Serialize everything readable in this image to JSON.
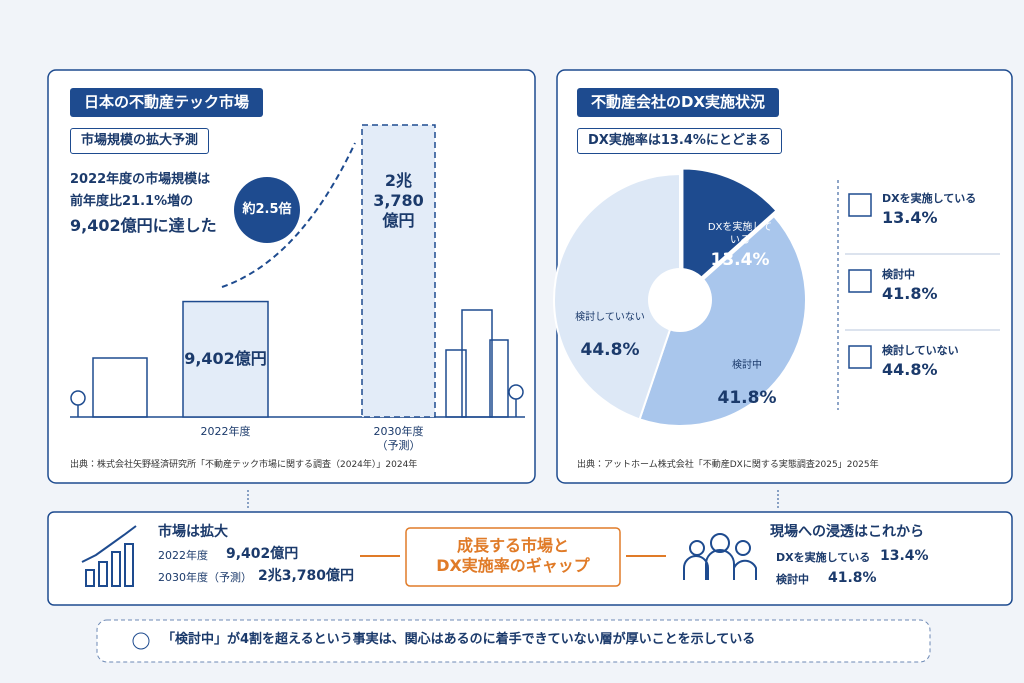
{
  "left_panel": {
    "title": "日本の不動産テック市場",
    "subtitle": "市場規模の拡大予測",
    "summary_lines": [
      "2022年度の市場規模は",
      "前年度比21.1%増の",
      "9,402億円に達した"
    ],
    "source": "出典：株式会社矢野経済研究所「不動産テック市場に関する調査（2024年）」2024年"
  },
  "right_panel": {
    "title": "不動産会社のDX実施状況",
    "subtitle": "DX実施率は13.4%にとどまる",
    "source": "出典：アットホーム株式会社「不動産DXに関する実態調査2025」2025年"
  },
  "chart_data": [
    {
      "type": "bar",
      "categories": [
        "2022年度",
        "2030年度\n（予測）"
      ],
      "values": [
        9402,
        23780
      ],
      "value_labels": [
        "9,402億円",
        "2兆3,780\n億円"
      ],
      "colors": [
        "#e3ecf8",
        "#e3ecf8"
      ],
      "annotation": "約2.5倍"
    },
    {
      "type": "pie",
      "categories": [
        "DXを実施している",
        "検討中",
        "検討していない"
      ],
      "values": [
        13.4,
        41.8,
        44.8
      ],
      "value_labels": [
        "13.4%",
        "41.8%",
        "44.8%"
      ],
      "colors": [
        "#1e4b8f",
        "#a9c6ec",
        "#dde8f6"
      ]
    }
  ],
  "summary": {
    "left": {
      "title": "市場は拡大",
      "rows": [
        {
          "label": "2022年度",
          "value": "9,402億円"
        },
        {
          "label": "2030年度（予測）",
          "value": "2兆3,780億円"
        }
      ]
    },
    "center": "成長する市場と\nDX実施率のギャップ",
    "right": {
      "title": "現場への浸透はこれから",
      "rows": [
        {
          "label": "DXを実施している",
          "value": "13.4%"
        },
        {
          "label": "検討中",
          "value": "41.8%"
        }
      ]
    }
  },
  "note": "「検討中」が4割を超えるという事実は、関心はあるのに着手できていない層が厚いことを示している"
}
